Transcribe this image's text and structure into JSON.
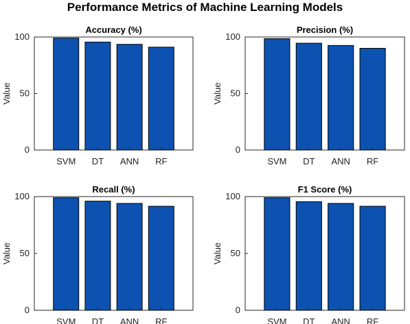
{
  "title": "Performance Metrics of Machine Learning Models",
  "chart_data": [
    {
      "type": "bar",
      "title": "Accuracy (%)",
      "ylabel": "Value",
      "categories": [
        "SVM",
        "DT",
        "ANN",
        "RF"
      ],
      "values": [
        99,
        95.5,
        93.5,
        91
      ],
      "ylim": [
        0,
        100
      ],
      "yticks": [
        0,
        50,
        100
      ],
      "bar_color": "#0d52b0",
      "grid": false
    },
    {
      "type": "bar",
      "title": "Precision (%)",
      "ylabel": "Value",
      "categories": [
        "SVM",
        "DT",
        "ANN",
        "RF"
      ],
      "values": [
        98.5,
        94.5,
        92.5,
        90
      ],
      "ylim": [
        0,
        100
      ],
      "yticks": [
        0,
        50,
        100
      ],
      "bar_color": "#0d52b0",
      "grid": false
    },
    {
      "type": "bar",
      "title": "Recall (%)",
      "ylabel": "Value",
      "categories": [
        "SVM",
        "DT",
        "ANN",
        "RF"
      ],
      "values": [
        99,
        96,
        94,
        91.5
      ],
      "ylim": [
        0,
        100
      ],
      "yticks": [
        0,
        50,
        100
      ],
      "bar_color": "#0d52b0",
      "grid": false
    },
    {
      "type": "bar",
      "title": "F1 Score (%)",
      "ylabel": "Value",
      "categories": [
        "SVM",
        "DT",
        "ANN",
        "RF"
      ],
      "values": [
        99,
        95.5,
        94,
        91.5
      ],
      "ylim": [
        0,
        100
      ],
      "yticks": [
        0,
        50,
        100
      ],
      "bar_color": "#0d52b0",
      "grid": false
    }
  ]
}
